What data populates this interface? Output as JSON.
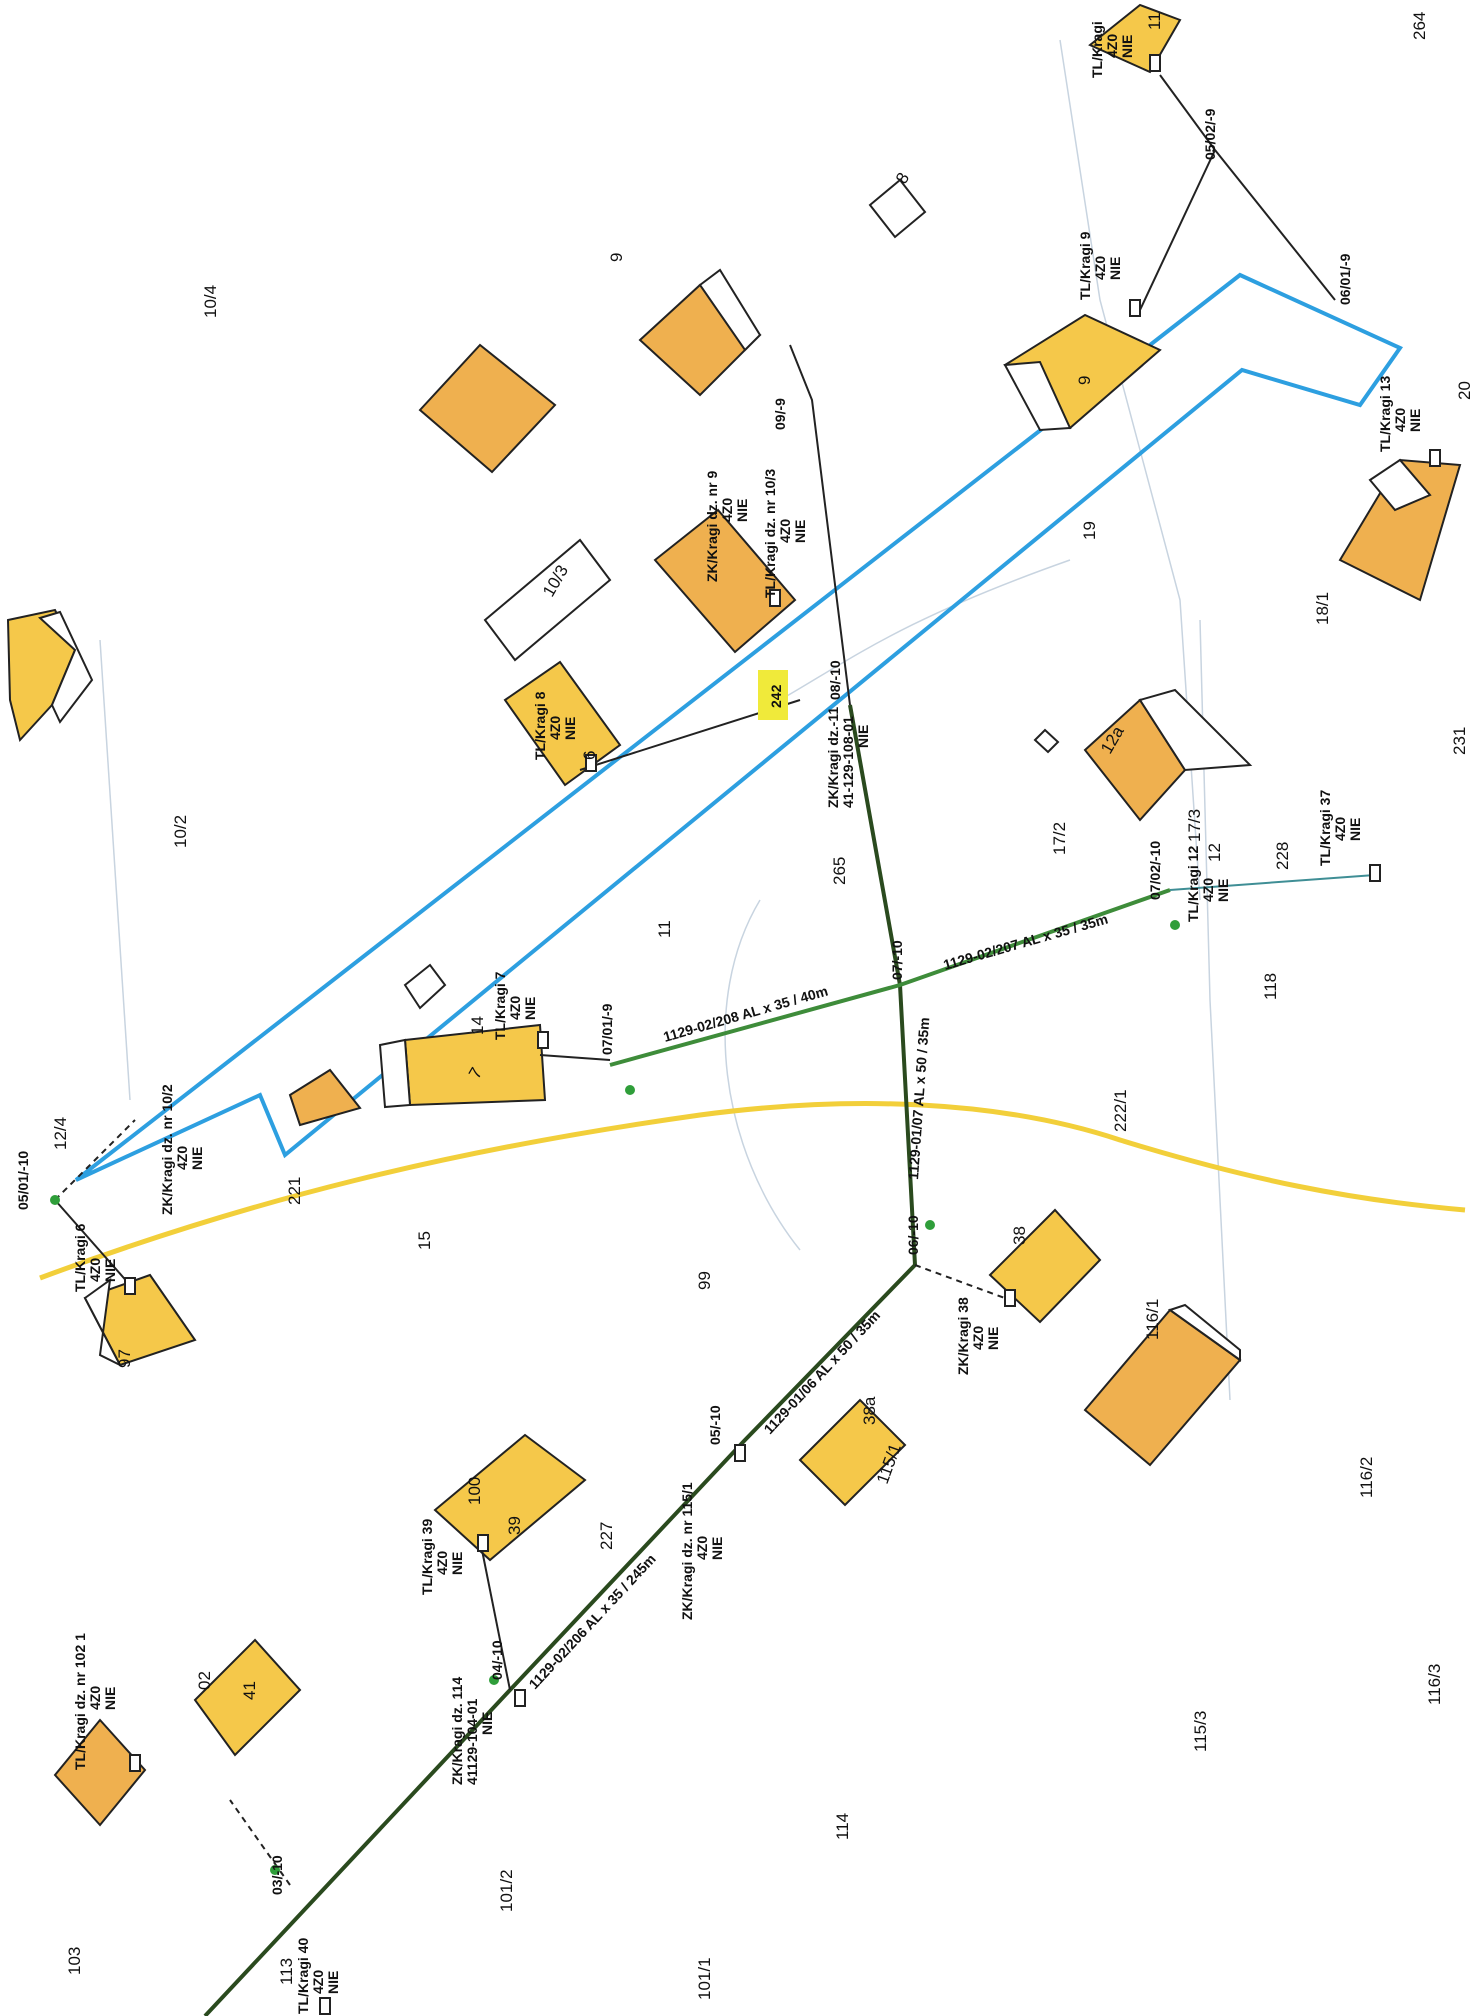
{
  "map": {
    "colors": {
      "building_fill": "#f5c84a",
      "building_fill_dark": "#efb04f",
      "zone_outline": "#2d9fe0",
      "road": "#f2cf3a",
      "cable_main": "#2a4a1e",
      "cable_green": "#3e8c3a",
      "service_line": "#3f8e95"
    },
    "parcel_numbers": [
      "10/4",
      "9",
      "10/3",
      "10/2",
      "11",
      "12/4",
      "15",
      "221",
      "99",
      "97",
      "19",
      "264",
      "20",
      "18/1",
      "231",
      "17/2",
      "265",
      "228",
      "118",
      "222/1",
      "116/1",
      "116/2",
      "116/3",
      "115/3",
      "114",
      "101/2",
      "101/1",
      "103",
      "113",
      "227",
      "100",
      "02"
    ],
    "house_numbers": [
      "8",
      "9",
      "11",
      "7",
      "14",
      "12a",
      "17/3",
      "12",
      "38",
      "39",
      "38a",
      "115/1",
      "41",
      "6"
    ],
    "zone_labels": [
      "242"
    ],
    "nodes": [
      "05/01/-10",
      "07/01/-9",
      "07/-10",
      "08/-10",
      "09/-9",
      "05/02/-9",
      "06/01/-9",
      "07/02/-10",
      "06/-10",
      "05/-10",
      "04/-10",
      "03/-10"
    ],
    "connections": [
      {
        "name": "TL/Kragi 6",
        "level": "4Z0",
        "status": "NIE"
      },
      {
        "name": "ZK/Kragi dz. nr 10/2",
        "level": "4Z0",
        "status": "NIE"
      },
      {
        "name": "TL/Kragi 7",
        "level": "4Z0",
        "status": "NIE"
      },
      {
        "name": "TL/Kragi 8",
        "level": "4Z0",
        "status": "NIE"
      },
      {
        "name": "ZK/Kragi dz. nr 9",
        "level": "4Z0",
        "status": "NIE"
      },
      {
        "name": "TL/Kragi dz. nr 10/3",
        "level": "4Z0",
        "status": "NIE"
      },
      {
        "name": "ZK/Kragi dz.-11",
        "code": "41-129-108-01",
        "status": "NIE"
      },
      {
        "name": "TL/Kragi 9",
        "level": "4Z0",
        "status": "NIE"
      },
      {
        "name": "TL/Kragi",
        "level": "4Z0",
        "status": "NIE",
        "extra": "11"
      },
      {
        "name": "TL/Kragi 13",
        "level": "4Z0",
        "status": "NIE"
      },
      {
        "name": "TL/Kragi 12",
        "level": "4Z0",
        "status": "NIE"
      },
      {
        "name": "TL/Kragi 37",
        "level": "4Z0",
        "status": "NIE"
      },
      {
        "name": "ZK/Kragi 38",
        "level": "4Z0",
        "status": "NIE"
      },
      {
        "name": "ZK/Kragi dz. nr 115/1",
        "level": "4Z0",
        "status": "NIE"
      },
      {
        "name": "TL/Kragi 39",
        "level": "4Z0",
        "status": "NIE"
      },
      {
        "name": "TL/Kragi dz. nr 102 1",
        "level": "4Z0",
        "status": "NIE"
      },
      {
        "name": "ZK/Kragi dz. 114",
        "code": "41129-104-01",
        "status": "NIE"
      },
      {
        "name": "TL/Kragi 40",
        "level": "4Z0",
        "status": "NIE"
      }
    ],
    "cables": [
      "1129-02/208 AL x 35 / 40m",
      "1129-02/207 AL x 35 / 35m",
      "1129-01/07 AL x 50 / 35m",
      "1129-01/06 AL x 50 / 35m",
      "1129-02/206 AL x 35 / 245m"
    ]
  }
}
